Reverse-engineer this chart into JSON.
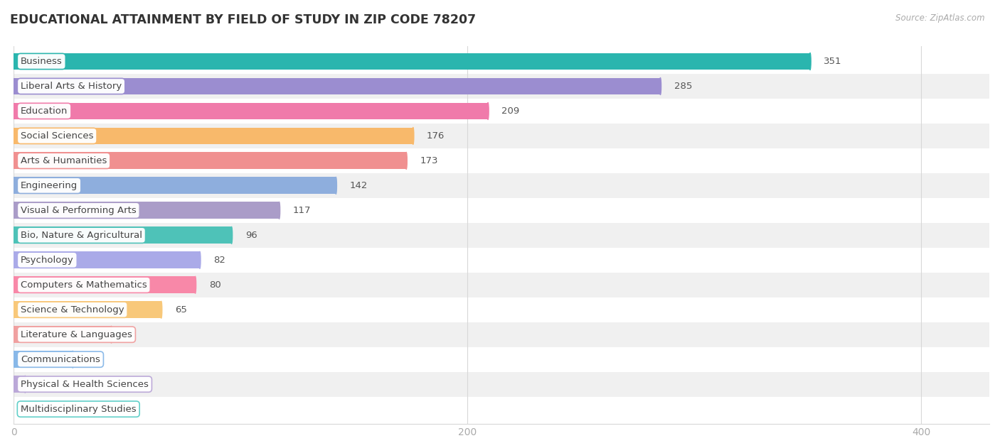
{
  "title": "EDUCATIONAL ATTAINMENT BY FIELD OF STUDY IN ZIP CODE 78207",
  "source": "Source: ZipAtlas.com",
  "categories": [
    "Business",
    "Liberal Arts & History",
    "Education",
    "Social Sciences",
    "Arts & Humanities",
    "Engineering",
    "Visual & Performing Arts",
    "Bio, Nature & Agricultural",
    "Psychology",
    "Computers & Mathematics",
    "Science & Technology",
    "Literature & Languages",
    "Communications",
    "Physical & Health Sciences",
    "Multidisciplinary Studies"
  ],
  "values": [
    351,
    285,
    209,
    176,
    173,
    142,
    117,
    96,
    82,
    80,
    65,
    43,
    26,
    5,
    0
  ],
  "bar_colors": [
    "#2ab5ae",
    "#9b8dd0",
    "#f07aaa",
    "#f8b96b",
    "#f09090",
    "#8eaedd",
    "#aa9cc8",
    "#4ec2b8",
    "#aaaae8",
    "#f888a8",
    "#f8c87a",
    "#f0a0a0",
    "#88b8e8",
    "#bba8d8",
    "#5ecec8"
  ],
  "xlim": [
    0,
    430
  ],
  "xticks": [
    0,
    200,
    400
  ],
  "background_color": "#ffffff",
  "row_colors": [
    "#ffffff",
    "#f0f0f0"
  ],
  "grid_color": "#d8d8d8",
  "title_fontsize": 12.5,
  "label_fontsize": 9.5,
  "value_fontsize": 9.5
}
